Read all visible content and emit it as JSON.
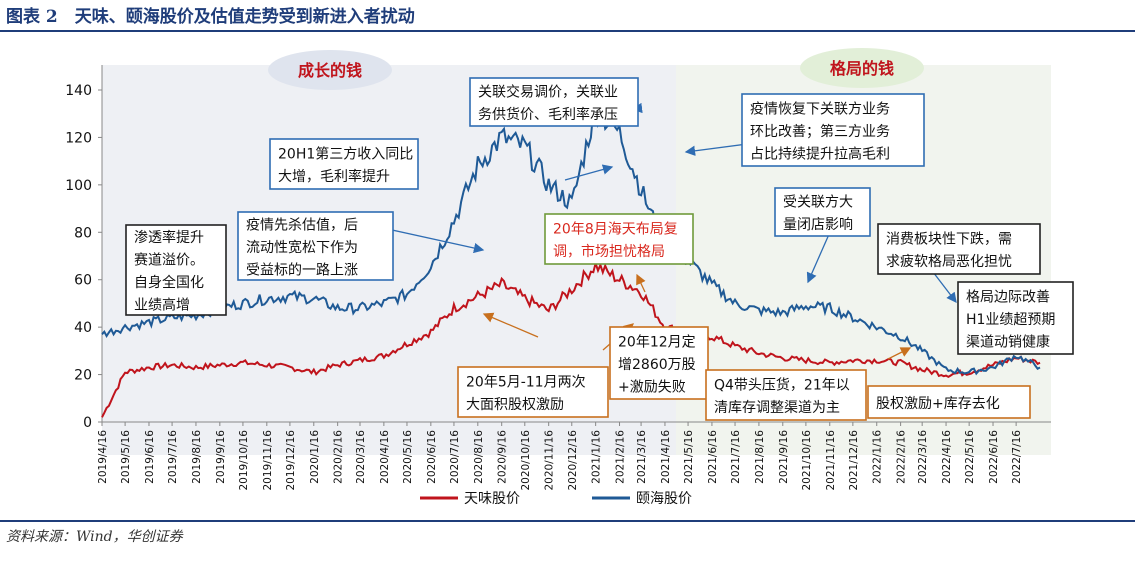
{
  "figure": {
    "title": "图表 2　天味、颐海股价及估值走势受到新进入者扰动",
    "source": "资料来源：Wind，华创证券"
  },
  "colors": {
    "title": "#1f3d7a",
    "series_tianwei": "#c0141c",
    "series_yihai": "#1f5a96",
    "phase_bubble": "#dfe4ee",
    "phase_bubble_right": "#e2efd8",
    "box_blue": "#2f6db3",
    "box_orange": "#c8701e",
    "box_green": "#6f9a3a",
    "box_black": "#222222",
    "box_red_text": "#d9281e"
  },
  "chart_data": {
    "type": "line",
    "x_axis": "date",
    "ylim": [
      0,
      140
    ],
    "yticks": [
      0,
      20,
      40,
      60,
      80,
      100,
      120,
      140
    ],
    "xticks": [
      "2019/4/16",
      "2019/5/16",
      "2019/6/16",
      "2019/7/16",
      "2019/8/16",
      "2019/9/16",
      "2019/10/16",
      "2019/11/16",
      "2019/12/16",
      "2020/1/16",
      "2020/2/16",
      "2020/3/16",
      "2020/4/16",
      "2020/5/16",
      "2020/6/16",
      "2020/7/16",
      "2020/8/16",
      "2020/9/16",
      "2020/10/16",
      "2020/11/16",
      "2020/12/16",
      "2021/1/16",
      "2021/2/16",
      "2021/3/16",
      "2021/4/16",
      "2021/5/16",
      "2021/6/16",
      "2021/7/16",
      "2021/8/16",
      "2021/9/16",
      "2021/10/16",
      "2021/11/16",
      "2021/12/16",
      "2022/1/16",
      "2022/2/16",
      "2022/3/16",
      "2022/4/16",
      "2022/5/16",
      "2022/6/16",
      "2022/7/16"
    ],
    "grid": false,
    "legend_position": "bottom",
    "series": [
      {
        "name": "天味股价",
        "color": "#c0141c",
        "x": [
          "2019/4/16",
          "2019/5/16",
          "2019/6/16",
          "2019/7/16",
          "2019/8/16",
          "2019/9/16",
          "2019/10/16",
          "2019/11/16",
          "2019/12/16",
          "2020/1/16",
          "2020/2/16",
          "2020/3/16",
          "2020/4/16",
          "2020/5/16",
          "2020/6/16",
          "2020/7/16",
          "2020/8/16",
          "2020/9/16",
          "2020/10/16",
          "2020/11/16",
          "2020/12/16",
          "2021/1/16",
          "2021/2/16",
          "2021/3/16",
          "2021/4/16",
          "2021/5/16",
          "2021/6/16",
          "2021/7/16",
          "2021/8/16",
          "2021/9/16",
          "2021/10/16",
          "2021/11/16",
          "2021/12/16",
          "2022/1/16",
          "2022/2/16",
          "2022/3/16",
          "2022/4/16",
          "2022/5/16",
          "2022/6/16",
          "2022/7/16",
          "2022/8/16"
        ],
        "values": [
          2,
          21,
          23,
          24,
          23,
          24,
          25,
          24,
          23,
          21,
          24,
          26,
          28,
          33,
          38,
          48,
          53,
          58,
          52,
          47,
          56,
          66,
          60,
          55,
          40,
          38,
          36,
          32,
          29,
          27,
          26,
          25,
          26,
          26,
          25,
          22,
          20,
          21,
          24,
          27,
          25
        ]
      },
      {
        "name": "颐海股价",
        "color": "#1f5a96",
        "x": [
          "2019/4/16",
          "2019/5/16",
          "2019/6/16",
          "2019/7/16",
          "2019/8/16",
          "2019/9/16",
          "2019/10/16",
          "2019/11/16",
          "2019/12/16",
          "2020/1/16",
          "2020/2/16",
          "2020/3/16",
          "2020/4/16",
          "2020/5/16",
          "2020/6/16",
          "2020/7/16",
          "2020/8/16",
          "2020/9/16",
          "2020/10/16",
          "2020/11/16",
          "2020/12/16",
          "2021/1/16",
          "2021/2/16",
          "2021/3/16",
          "2021/4/16",
          "2021/5/16",
          "2021/6/16",
          "2021/7/16",
          "2021/8/16",
          "2021/9/16",
          "2021/10/16",
          "2021/11/16",
          "2021/12/16",
          "2022/1/16",
          "2022/2/16",
          "2022/3/16",
          "2022/4/16",
          "2022/5/16",
          "2022/6/16",
          "2022/7/16",
          "2022/8/16"
        ],
        "values": [
          37,
          40,
          42,
          44,
          45,
          48,
          50,
          52,
          53,
          52,
          48,
          48,
          50,
          54,
          66,
          85,
          108,
          120,
          116,
          100,
          92,
          132,
          122,
          98,
          74,
          68,
          58,
          50,
          47,
          46,
          49,
          48,
          44,
          40,
          36,
          30,
          22,
          21,
          23,
          28,
          23
        ]
      }
    ]
  },
  "phases": [
    {
      "label": "成长的钱"
    },
    {
      "label": "格局的钱"
    }
  ],
  "annotations": [
    {
      "id": "penetration",
      "lines": [
        "渗透率提升",
        "赛道溢价。",
        "自身全国化",
        "业绩高增"
      ],
      "style": "black"
    },
    {
      "id": "covid-valuation",
      "lines": [
        "疫情先杀估值，后",
        "流动性宽松下作为",
        "受益标的一路上涨"
      ],
      "style": "blue"
    },
    {
      "id": "h1-third-party",
      "lines": [
        "20H1第三方收入同比",
        "大增，毛利率提升"
      ],
      "style": "blue"
    },
    {
      "id": "related-trade",
      "lines": [
        "关联交易调价，关联业",
        "务供货价、毛利率承压"
      ],
      "style": "blue"
    },
    {
      "id": "aug-haitian",
      "lines": [
        "20年8月海天布局复",
        "调，市场担忧格局"
      ],
      "style": "green"
    },
    {
      "id": "covid-recovery",
      "lines": [
        "疫情恢复下关联方业务",
        "环比改善；第三方业务",
        "占比持续提升拉高毛利"
      ],
      "style": "blue"
    },
    {
      "id": "related-store-closure",
      "lines": [
        "受关联方大",
        "量闭店影响"
      ],
      "style": "blue"
    },
    {
      "id": "consumer-decline",
      "lines": [
        "消费板块性下跌，需",
        "求疲软格局恶化担忧"
      ],
      "style": "black"
    },
    {
      "id": "pattern-improve",
      "lines": [
        "格局边际改善",
        "H1业绩超预期",
        "渠道动销健康"
      ],
      "style": "black"
    },
    {
      "id": "equity-incentive-2020",
      "lines": [
        "20年5月-11月两次",
        "大面积股权激励"
      ],
      "style": "orange"
    },
    {
      "id": "dec-placement",
      "lines": [
        "20年12月定",
        "增2860万股",
        "+激励失败"
      ],
      "style": "orange"
    },
    {
      "id": "q4-destock",
      "lines": [
        "Q4带头压货，21年以",
        "清库存调整渠道为主"
      ],
      "style": "orange"
    },
    {
      "id": "equity-destock",
      "lines": [
        "股权激励+库存去化"
      ],
      "style": "orange"
    }
  ]
}
